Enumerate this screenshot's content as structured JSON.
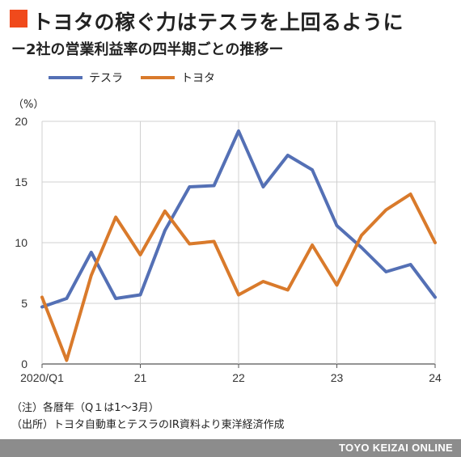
{
  "header": {
    "title": "トヨタの稼ぐ力はテスラを上回るように",
    "subtitle": "ー2社の営業利益率の四半期ごとの推移ー"
  },
  "chart_data": {
    "type": "line",
    "unit_label": "（%）",
    "x_tick_labels": [
      "2020/Q1",
      "21",
      "22",
      "23",
      "24"
    ],
    "x_tick_positions": [
      0,
      4,
      8,
      12,
      16
    ],
    "y_ticks": [
      0,
      5,
      10,
      15,
      20
    ],
    "ylim": [
      0,
      20
    ],
    "grid": true,
    "legend_position": "top-left",
    "series": [
      {
        "name": "テスラ",
        "color": "#5470b5",
        "values": [
          4.7,
          5.4,
          9.2,
          5.4,
          5.7,
          11.0,
          14.6,
          14.7,
          19.2,
          14.6,
          17.2,
          16.0,
          11.4,
          9.6,
          7.6,
          8.2,
          5.5
        ]
      },
      {
        "name": "トヨタ",
        "color": "#d97a2b",
        "values": [
          5.5,
          0.3,
          7.3,
          12.1,
          9.0,
          12.6,
          9.9,
          10.1,
          5.7,
          6.8,
          6.1,
          9.8,
          6.5,
          10.6,
          12.7,
          14.0,
          10.0
        ]
      }
    ]
  },
  "notes": {
    "note1": "（注）各暦年（Q１は1〜3月）",
    "note2": "（出所）トヨタ自動車とテスラのIR資料より東洋経済作成"
  },
  "footer": {
    "brand": "TOYO KEIZAI ONLINE"
  }
}
